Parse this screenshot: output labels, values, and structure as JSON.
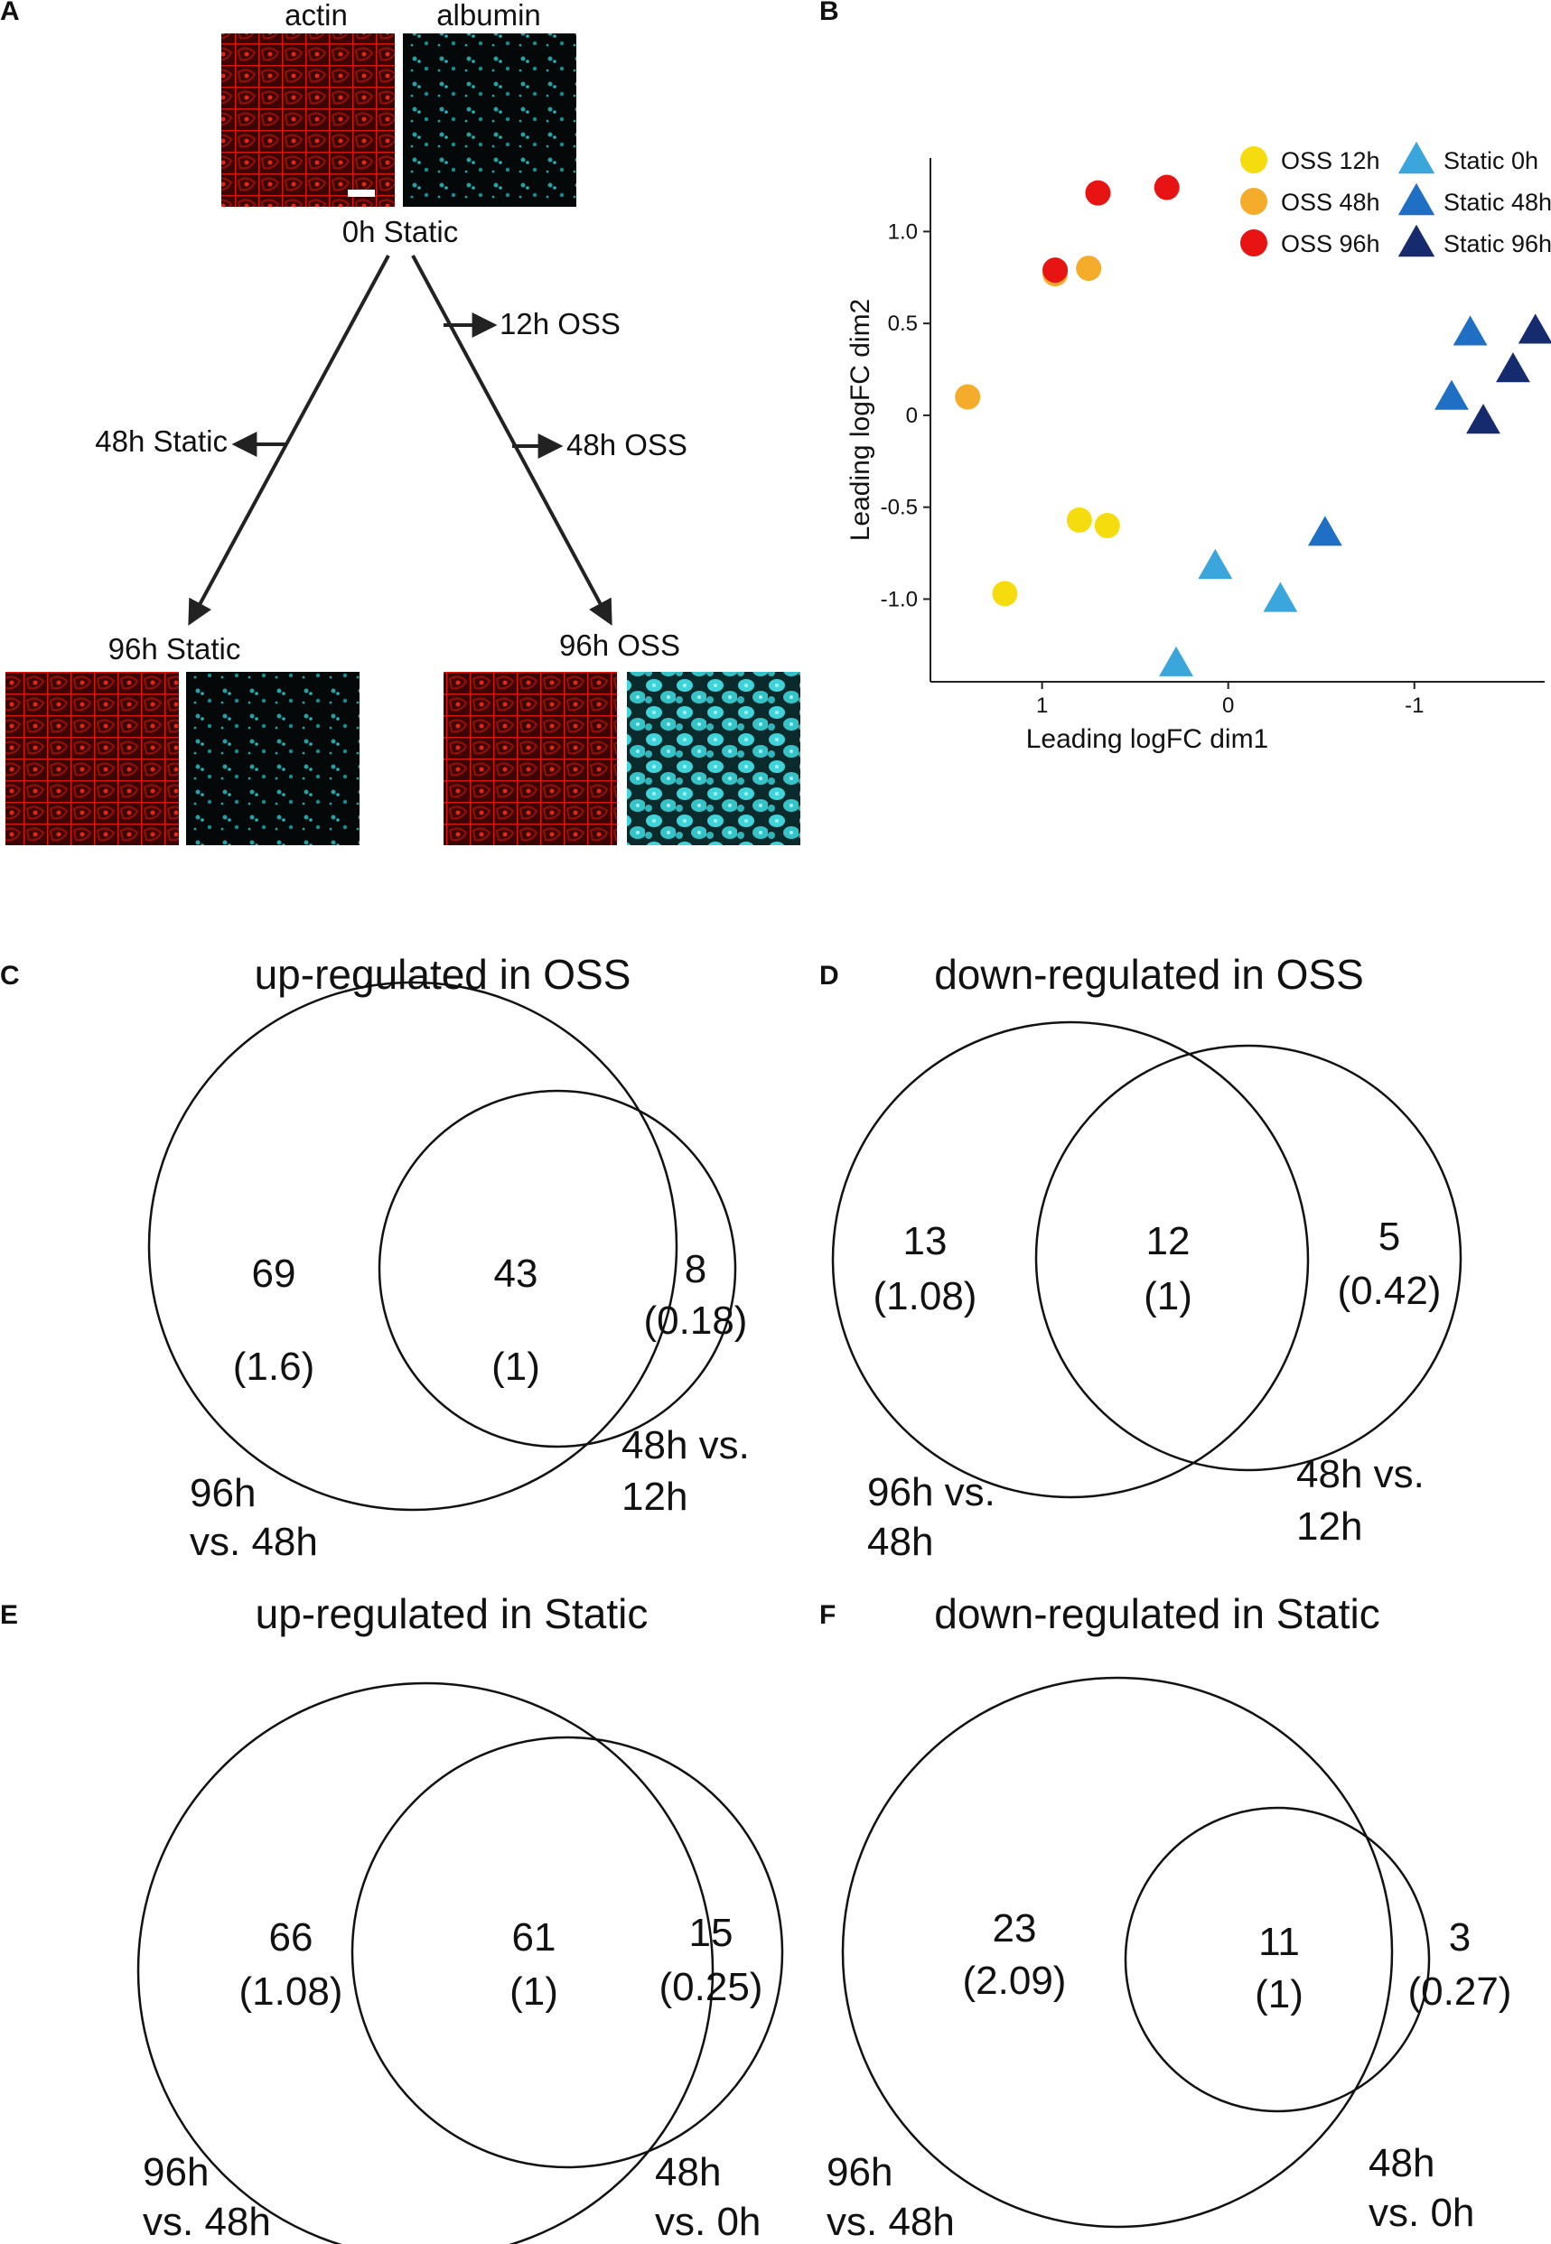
{
  "panels": {
    "A": {
      "letter": "A",
      "header_left": "actin",
      "header_right": "albumin",
      "top_label": "0h Static",
      "branch_12h_oss": "12h OSS",
      "branch_48h_static": "48h Static",
      "branch_48h_oss": "48h OSS",
      "bottom_left_label": "96h Static",
      "bottom_right_label": "96h OSS",
      "colors": {
        "actin": "#c4120f",
        "albumin": "#1ea3a8",
        "albumin_bright": "#3fd4d9",
        "background": "#060606"
      }
    },
    "B": {
      "letter": "B"
    },
    "C": {
      "letter": "C"
    },
    "D": {
      "letter": "D"
    },
    "E": {
      "letter": "E"
    },
    "F": {
      "letter": "F"
    }
  },
  "chart_data": [
    {
      "type": "scatter",
      "panel": "B",
      "xlabel": "Leading logFC dim1",
      "ylabel": "Leading logFC dim2",
      "x_reversed": true,
      "xlim": [
        1.6,
        -1.7
      ],
      "ylim": [
        -1.45,
        1.4
      ],
      "xticks": [
        {
          "value": 1,
          "label": "1"
        },
        {
          "value": 0,
          "label": "0"
        },
        {
          "value": -1,
          "label": "-1"
        }
      ],
      "yticks": [
        {
          "value": 1.0,
          "label": "1.0"
        },
        {
          "value": 0.5,
          "label": "0.5"
        },
        {
          "value": 0,
          "label": "0"
        },
        {
          "value": -0.5,
          "label": "-0.5"
        },
        {
          "value": -1.0,
          "label": "-1.0"
        }
      ],
      "legend_position": "top-right",
      "series": [
        {
          "name": "OSS 12h",
          "shape": "circle",
          "color": "#f5dc0f",
          "points": [
            [
              1.2,
              -0.97
            ],
            [
              0.8,
              -0.57
            ],
            [
              0.65,
              -0.6
            ]
          ]
        },
        {
          "name": "OSS 48h",
          "shape": "circle",
          "color": "#f4ac2a",
          "points": [
            [
              1.4,
              0.1
            ],
            [
              0.93,
              0.77
            ],
            [
              0.75,
              0.8
            ]
          ]
        },
        {
          "name": "OSS 96h",
          "shape": "circle",
          "color": "#e81414",
          "points": [
            [
              0.93,
              0.79
            ],
            [
              0.7,
              1.21
            ],
            [
              0.33,
              1.24
            ]
          ]
        },
        {
          "name": "Static 0h",
          "shape": "triangle",
          "color": "#3aa6db",
          "points": [
            [
              0.28,
              -1.35
            ],
            [
              0.07,
              -0.82
            ],
            [
              -0.28,
              -1.0
            ]
          ]
        },
        {
          "name": "Static 48h",
          "shape": "triangle",
          "color": "#1f6fc4",
          "points": [
            [
              -0.52,
              -0.64
            ],
            [
              -1.2,
              0.1
            ],
            [
              -1.3,
              0.45
            ]
          ]
        },
        {
          "name": "Static 96h",
          "shape": "triangle",
          "color": "#152b6e",
          "points": [
            [
              -1.37,
              -0.03
            ],
            [
              -1.53,
              0.25
            ],
            [
              -1.65,
              0.46
            ]
          ]
        }
      ]
    },
    {
      "type": "venn",
      "panel": "C",
      "title": "up-regulated in OSS",
      "sets": [
        "96h vs. 48h",
        "48h vs. 12h"
      ],
      "set_label_lines": [
        [
          "96h",
          "vs. 48h"
        ],
        [
          "48h vs.",
          "12h"
        ]
      ],
      "regions": [
        {
          "region": "only 96h vs. 48h",
          "count": "69",
          "ratio": "(1.6)"
        },
        {
          "region": "both",
          "count": "43",
          "ratio": "(1)"
        },
        {
          "region": "only 48h vs. 12h",
          "count": "8",
          "ratio": "(0.18)"
        }
      ]
    },
    {
      "type": "venn",
      "panel": "D",
      "title": "down-regulated in OSS",
      "sets": [
        "96h vs. 48h",
        "48h vs. 12h"
      ],
      "set_label_lines": [
        [
          "96h vs.",
          "48h"
        ],
        [
          "48h vs.",
          "12h"
        ]
      ],
      "regions": [
        {
          "region": "only 96h vs. 48h",
          "count": "13",
          "ratio": "(1.08)"
        },
        {
          "region": "both",
          "count": "12",
          "ratio": "(1)"
        },
        {
          "region": "only 48h vs. 12h",
          "count": "5",
          "ratio": "(0.42)"
        }
      ]
    },
    {
      "type": "venn",
      "panel": "E",
      "title": "up-regulated in Static",
      "sets": [
        "96h vs. 48h",
        "48h vs. 0h"
      ],
      "set_label_lines": [
        [
          "96h",
          "vs. 48h"
        ],
        [
          "48h",
          "vs. 0h"
        ]
      ],
      "regions": [
        {
          "region": "only 96h vs. 48h",
          "count": "66",
          "ratio": "(1.08)"
        },
        {
          "region": "both",
          "count": "61",
          "ratio": "(1)"
        },
        {
          "region": "only 48h vs. 0h",
          "count": "15",
          "ratio": "(0.25)"
        }
      ]
    },
    {
      "type": "venn",
      "panel": "F",
      "title": "down-regulated in Static",
      "sets": [
        "96h vs. 48h",
        "48h vs. 0h"
      ],
      "set_label_lines": [
        [
          "96h",
          "vs. 48h"
        ],
        [
          "48h",
          "vs. 0h"
        ]
      ],
      "regions": [
        {
          "region": "only 96h vs. 48h",
          "count": "23",
          "ratio": "(2.09)"
        },
        {
          "region": "both",
          "count": "11",
          "ratio": "(1)"
        },
        {
          "region": "only 48h vs. 0h",
          "count": "3",
          "ratio": "(0.27)"
        }
      ]
    }
  ]
}
